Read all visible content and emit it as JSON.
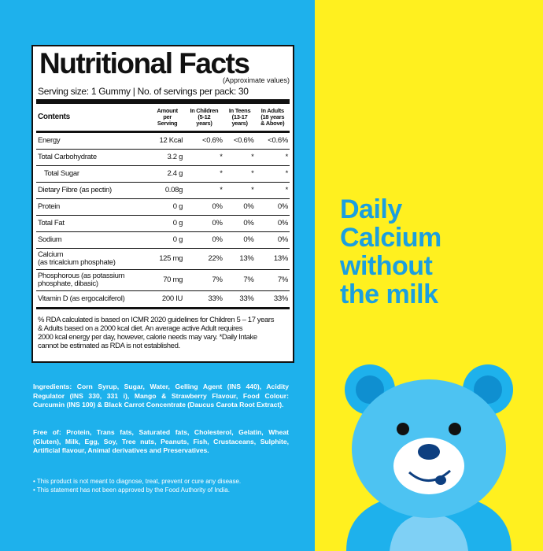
{
  "label": {
    "title": "Nutritional Facts",
    "subtitle": "(Approximate values)",
    "serving": "Serving size: 1 Gummy | No. of servings per pack: 30",
    "header": [
      [
        "Contents"
      ],
      [
        "Amount",
        "per",
        "Serving"
      ],
      [
        "In Children",
        "(5-12",
        "years)"
      ],
      [
        "In Teens",
        "(13-17",
        "years)"
      ],
      [
        "In Adults",
        "(18 years",
        "& Above)"
      ]
    ],
    "rows": [
      [
        [
          "Energy"
        ],
        "12 Kcal",
        "<0.6%",
        "<0.6%",
        "<0.6%"
      ],
      [
        [
          "Total Carbohydrate"
        ],
        "3.2 g",
        "*",
        "*",
        "*"
      ],
      [
        [
          "Total Sugar"
        ],
        "2.4 g",
        "*",
        "*",
        "*"
      ],
      [
        [
          "Dietary Fibre (as pectin)"
        ],
        "0.08g",
        "*",
        "*",
        "*"
      ],
      [
        [
          "Protein"
        ],
        "0 g",
        "0%",
        "0%",
        "0%"
      ],
      [
        [
          "Total Fat"
        ],
        "0 g",
        "0%",
        "0%",
        "0%"
      ],
      [
        [
          "Sodium"
        ],
        "0 g",
        "0%",
        "0%",
        "0%"
      ],
      [
        [
          "Calcium",
          "(as tricalcium phosphate)"
        ],
        "125 mg",
        "22%",
        "13%",
        "13%"
      ],
      [
        [
          "Phosphorous (as potassium",
          "phosphate, dibasic)"
        ],
        "70 mg",
        "7%",
        "7%",
        "7%"
      ],
      [
        [
          "Vitamin D (as ergocalciferol)"
        ],
        "200 IU",
        "33%",
        "33%",
        "33%"
      ]
    ],
    "footnote": [
      "% RDA calculated is based on ICMR 2020 guidelines for Children 5 – 17 years",
      "& Adults based on a 2000 kcal diet. An average active Adult requires",
      "2000 kcal energy per day, however, calorie needs may vary. *Daily Intake",
      "cannot be estimated as RDA is not established."
    ]
  },
  "ingredients": "Ingredients: Corn Syrup, Sugar, Water, Gelling Agent (INS 440), Acidity Regulator (INS 330, 331 i), Mango & Strawberry Flavour, Food Colour: Curcumin (INS 100) & Black Carrot Concentrate (Daucus Carota Root Extract).",
  "free_of": "Free of: Protein, Trans fats, Saturated fats, Cholesterol, Gelatin, Wheat (Gluten), Milk, Egg, Soy, Tree nuts, Peanuts, Fish, Crustaceans, Sulphite, Artificial flavour, Animal derivatives and Preservatives.",
  "disclaimers": [
    "• This product is not meant to diagnose, treat, prevent or cure any disease.",
    "• This statement has not been approved by the Food Authority of India."
  ],
  "tagline": [
    "Daily",
    "Calcium",
    "without",
    "the milk"
  ]
}
